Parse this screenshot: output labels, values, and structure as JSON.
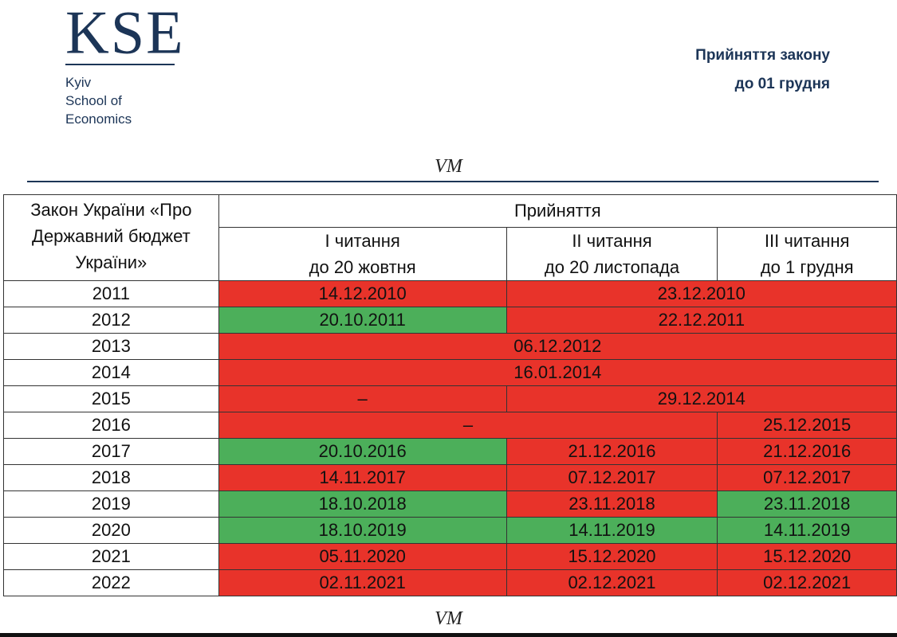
{
  "logo": {
    "mark": "KSE",
    "subtitle_lines": [
      "Kyiv",
      "School of",
      "Economics"
    ]
  },
  "heading": {
    "line1": "Прийняття закону",
    "line2": "до 01 грудня"
  },
  "watermark": "VM",
  "colors": {
    "late": "#e8332a",
    "on_time": "#4caf5a",
    "brand": "#1c3557"
  },
  "table": {
    "law_header": "Закон України «Про Державний бюджет України»",
    "adoption_header": "Прийняття",
    "readings": [
      {
        "name": "І читання",
        "deadline": "до 20 жовтня"
      },
      {
        "name": "ІІ читання",
        "deadline": "до 20 листопада"
      },
      {
        "name": "ІІІ читання",
        "deadline": "до 1 грудня"
      }
    ],
    "rows": [
      {
        "year": "2011",
        "cells": [
          {
            "text": "14.12.2010",
            "span": 1,
            "status": "late"
          },
          {
            "text": "23.12.2010",
            "span": 2,
            "status": "late"
          }
        ]
      },
      {
        "year": "2012",
        "cells": [
          {
            "text": "20.10.2011",
            "span": 1,
            "status": "on_time"
          },
          {
            "text": "22.12.2011",
            "span": 2,
            "status": "late"
          }
        ]
      },
      {
        "year": "2013",
        "cells": [
          {
            "text": "06.12.2012",
            "span": 3,
            "status": "late"
          }
        ]
      },
      {
        "year": "2014",
        "cells": [
          {
            "text": "16.01.2014",
            "span": 3,
            "status": "late"
          }
        ]
      },
      {
        "year": "2015",
        "cells": [
          {
            "text": "–",
            "span": 1,
            "status": "late"
          },
          {
            "text": "29.12.2014",
            "span": 2,
            "status": "late"
          }
        ]
      },
      {
        "year": "2016",
        "cells": [
          {
            "text": "–",
            "span": 2,
            "status": "late"
          },
          {
            "text": "25.12.2015",
            "span": 1,
            "status": "late"
          }
        ]
      },
      {
        "year": "2017",
        "cells": [
          {
            "text": "20.10.2016",
            "span": 1,
            "status": "on_time"
          },
          {
            "text": "21.12.2016",
            "span": 1,
            "status": "late"
          },
          {
            "text": "21.12.2016",
            "span": 1,
            "status": "late"
          }
        ]
      },
      {
        "year": "2018",
        "cells": [
          {
            "text": "14.11.2017",
            "span": 1,
            "status": "late"
          },
          {
            "text": "07.12.2017",
            "span": 1,
            "status": "late"
          },
          {
            "text": "07.12.2017",
            "span": 1,
            "status": "late"
          }
        ]
      },
      {
        "year": "2019",
        "cells": [
          {
            "text": "18.10.2018",
            "span": 1,
            "status": "on_time"
          },
          {
            "text": "23.11.2018",
            "span": 1,
            "status": "late"
          },
          {
            "text": "23.11.2018",
            "span": 1,
            "status": "on_time"
          }
        ]
      },
      {
        "year": "2020",
        "cells": [
          {
            "text": "18.10.2019",
            "span": 1,
            "status": "on_time"
          },
          {
            "text": "14.11.2019",
            "span": 1,
            "status": "on_time"
          },
          {
            "text": "14.11.2019",
            "span": 1,
            "status": "on_time"
          }
        ]
      },
      {
        "year": "2021",
        "cells": [
          {
            "text": "05.11.2020",
            "span": 1,
            "status": "late"
          },
          {
            "text": "15.12.2020",
            "span": 1,
            "status": "late"
          },
          {
            "text": "15.12.2020",
            "span": 1,
            "status": "late"
          }
        ]
      },
      {
        "year": "2022",
        "cells": [
          {
            "text": "02.11.2021",
            "span": 1,
            "status": "late"
          },
          {
            "text": "02.12.2021",
            "span": 1,
            "status": "late"
          },
          {
            "text": "02.12.2021",
            "span": 1,
            "status": "late"
          }
        ]
      }
    ]
  }
}
